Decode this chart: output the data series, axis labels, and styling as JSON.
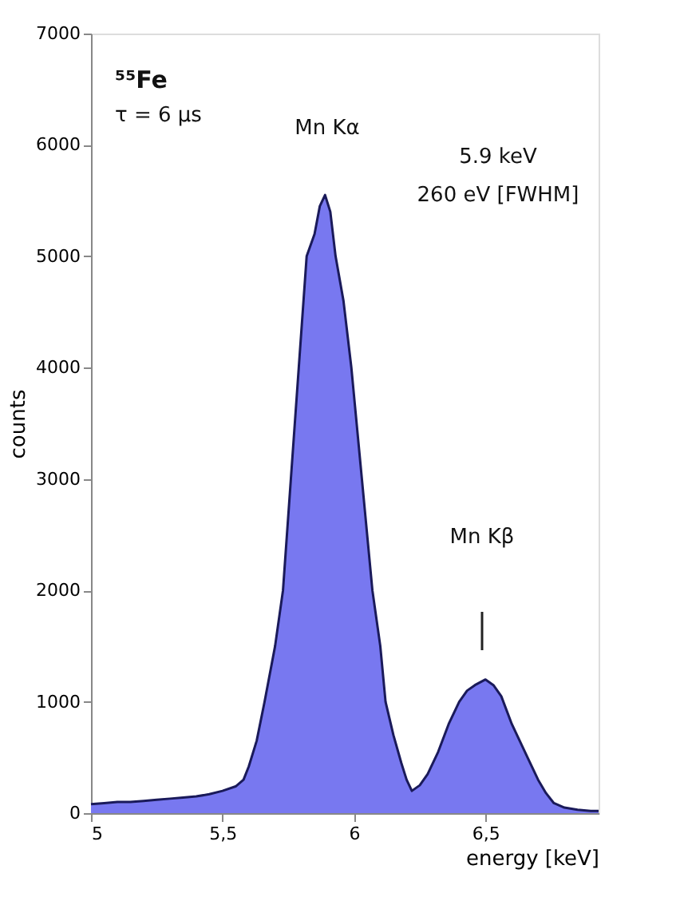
{
  "chart_data": {
    "type": "area",
    "xlabel": "energy [keV]",
    "ylabel": "counts",
    "x": [
      5,
      5.05,
      5.1,
      5.15,
      5.2,
      5.25,
      5.3,
      5.35,
      5.4,
      5.45,
      5.5,
      5.55,
      5.58,
      5.6,
      5.63,
      5.66,
      5.7,
      5.73,
      5.76,
      5.79,
      5.82,
      5.85,
      5.87,
      5.89,
      5.91,
      5.93,
      5.96,
      5.99,
      6.03,
      6.07,
      6.1,
      6.12,
      6.15,
      6.18,
      6.2,
      6.22,
      6.25,
      6.28,
      6.32,
      6.36,
      6.4,
      6.43,
      6.46,
      6.5,
      6.53,
      6.56,
      6.6,
      6.63,
      6.66,
      6.7,
      6.73,
      6.76,
      6.8,
      6.85,
      6.9,
      6.93
    ],
    "series": [
      {
        "color": "#7878f0",
        "values": [
          80,
          90,
          100,
          100,
          110,
          120,
          130,
          140,
          150,
          170,
          200,
          240,
          300,
          420,
          650,
          1000,
          1500,
          2000,
          3000,
          4000,
          5000,
          5200,
          5450,
          5550,
          5400,
          5000,
          4600,
          4000,
          3000,
          2000,
          1500,
          1000,
          700,
          450,
          300,
          200,
          250,
          350,
          550,
          800,
          1000,
          1100,
          1150,
          1200,
          1150,
          1050,
          800,
          650,
          500,
          300,
          180,
          90,
          50,
          30,
          20,
          20
        ]
      }
    ],
    "xlim": [
      5,
      6.93
    ],
    "ylim": [
      0,
      7000
    ],
    "xticks": [
      5,
      {
        "value": 5.5,
        "label": "5,5"
      },
      6,
      {
        "value": 6.5,
        "label": "6,5"
      }
    ],
    "yticks": [
      0,
      1000,
      2000,
      3000,
      4000,
      5000,
      6000,
      7000
    ],
    "grid": false,
    "annotations": [
      "⁵⁵Fe",
      "τ = 6 μs",
      "Mn Kα",
      "5.9 keV",
      "260 eV [FWHM]",
      "Mn Kβ"
    ]
  }
}
